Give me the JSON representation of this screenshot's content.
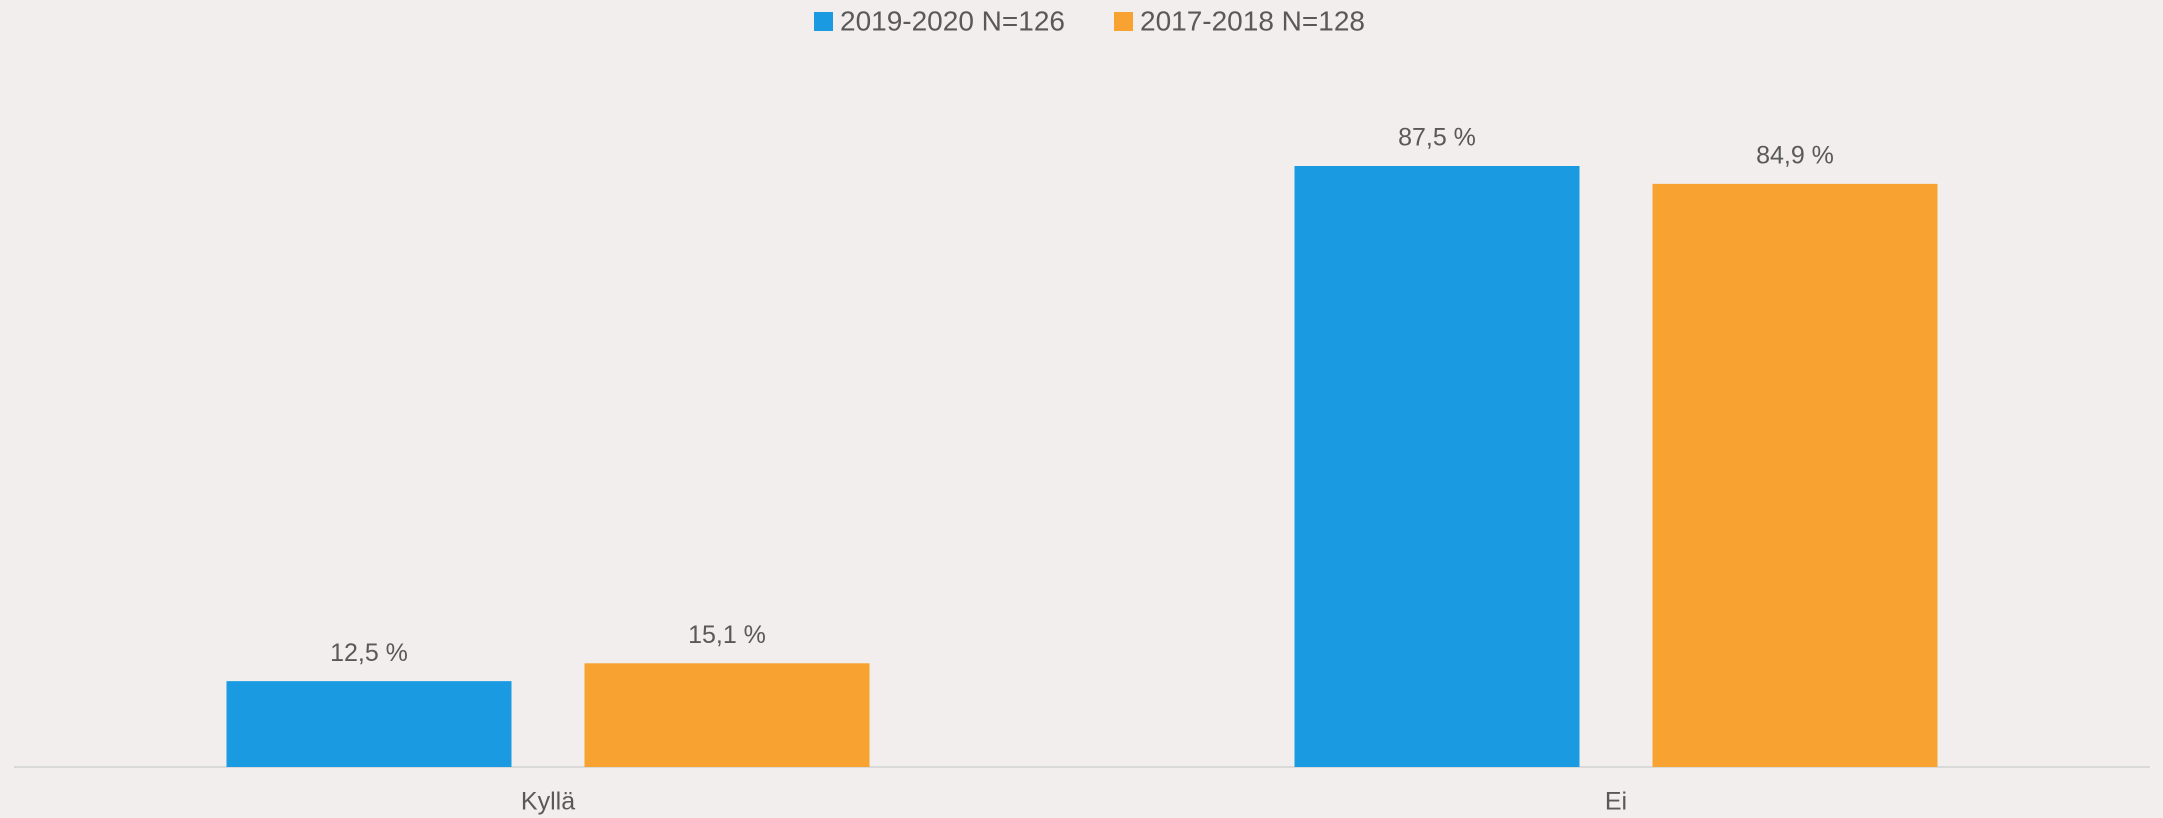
{
  "chart_data": {
    "type": "bar",
    "categories": [
      "Kyllä",
      "Ei"
    ],
    "series": [
      {
        "name": "2019-2020 N=126",
        "color": "#1a9ae0",
        "values": [
          12.5,
          87.5
        ],
        "value_labels": [
          "12,5 %",
          "87,5 %"
        ]
      },
      {
        "name": "2017-2018 N=128",
        "color": "#f7a231",
        "values": [
          15.1,
          84.9
        ],
        "value_labels": [
          "15,1 %",
          "84,9 %"
        ]
      }
    ],
    "legend": "top"
  }
}
